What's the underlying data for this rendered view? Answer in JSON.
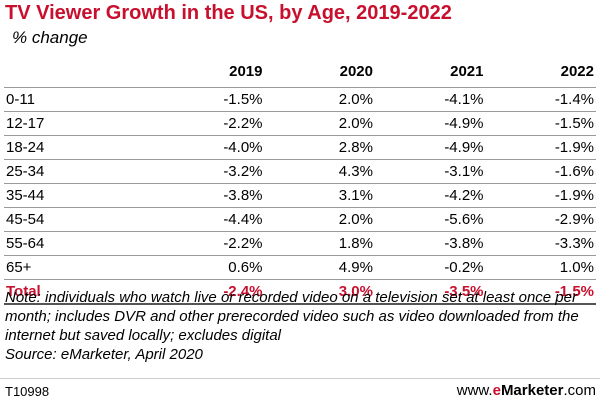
{
  "chart_data": {
    "type": "table",
    "title": "TV Viewer Growth in the US, by Age, 2019-2022",
    "subtitle": "% change",
    "columns": [
      "2019",
      "2020",
      "2021",
      "2022"
    ],
    "rows": [
      {
        "label": "0-11",
        "values": [
          "-1.5%",
          "2.0%",
          "-4.1%",
          "-1.4%"
        ]
      },
      {
        "label": "12-17",
        "values": [
          "-2.2%",
          "2.0%",
          "-4.9%",
          "-1.5%"
        ]
      },
      {
        "label": "18-24",
        "values": [
          "-4.0%",
          "2.8%",
          "-4.9%",
          "-1.9%"
        ]
      },
      {
        "label": "25-34",
        "values": [
          "-3.2%",
          "4.3%",
          "-3.1%",
          "-1.6%"
        ]
      },
      {
        "label": "35-44",
        "values": [
          "-3.8%",
          "3.1%",
          "-4.2%",
          "-1.9%"
        ]
      },
      {
        "label": "45-54",
        "values": [
          "-4.4%",
          "2.0%",
          "-5.6%",
          "-2.9%"
        ]
      },
      {
        "label": "55-64",
        "values": [
          "-2.2%",
          "1.8%",
          "-3.8%",
          "-3.3%"
        ]
      },
      {
        "label": "65+",
        "values": [
          "0.6%",
          "4.9%",
          "-0.2%",
          "1.0%"
        ]
      }
    ],
    "total": {
      "label": "Total",
      "values": [
        "-2.4%",
        "3.0%",
        "-3.5%",
        "-1.5%"
      ]
    },
    "accent_color": "#c8102e"
  },
  "note": "Note: individuals who watch live or recorded video on a television set at least once per month; includes DVR and other prerecorded video such as video downloaded from the internet but saved locally; excludes digital",
  "source": "Source: eMarketer, April 2020",
  "code": "T10998",
  "brand": {
    "prefix": "www.",
    "e": "e",
    "name": "Marketer",
    "suffix": ".com"
  }
}
